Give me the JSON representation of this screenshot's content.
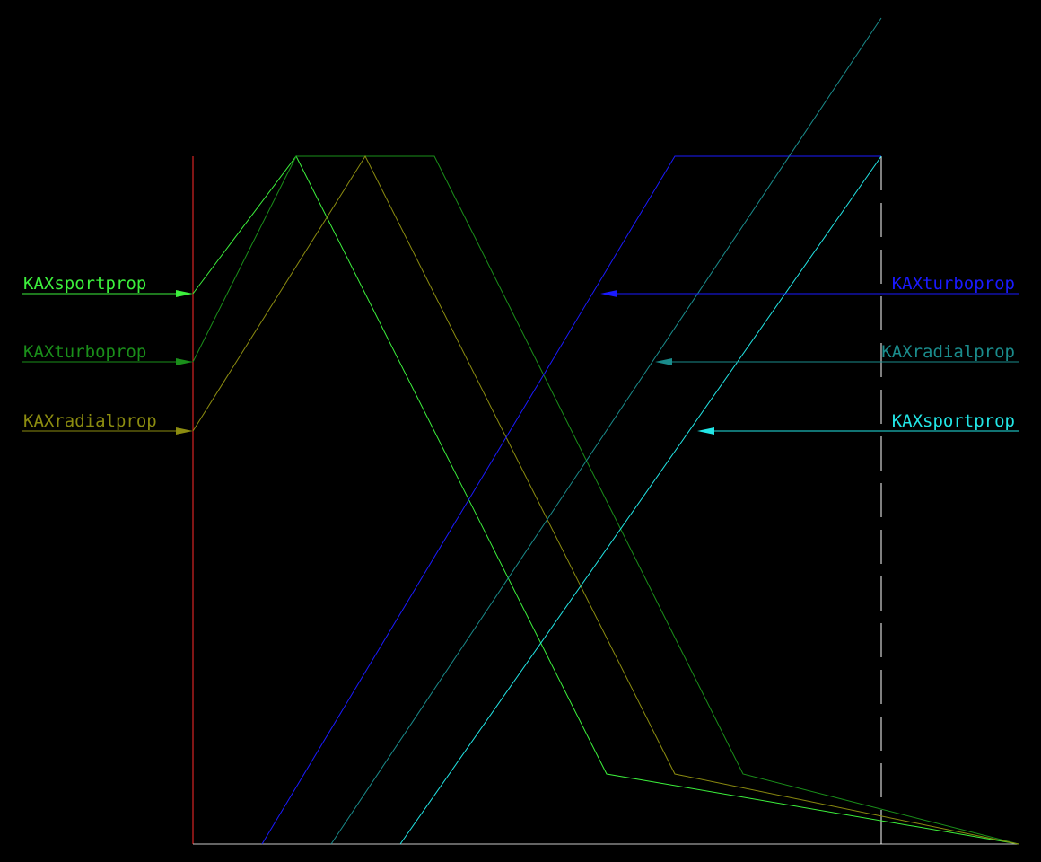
{
  "labels": {
    "left_1": "KAXsportprop",
    "left_2": "KAXturboprop",
    "left_3": "KAXradialprop",
    "right_1": "KAXturboprop",
    "right_2": "KAXradialprop",
    "right_3": "KAXsportprop"
  },
  "colors": {
    "background": "#000000",
    "axis_left": "#ff2a2a",
    "axis_bottom": "#c8c8c8",
    "dashed_right": "#ffffff",
    "sportprop_left": "#3cf03c",
    "turboprop_left": "#1a8f1a",
    "radialprop_left": "#8c8c10",
    "turboprop_right": "#1a1aff",
    "radialprop_right": "#1a8c8c",
    "sportprop_right": "#22e6e6"
  }
}
